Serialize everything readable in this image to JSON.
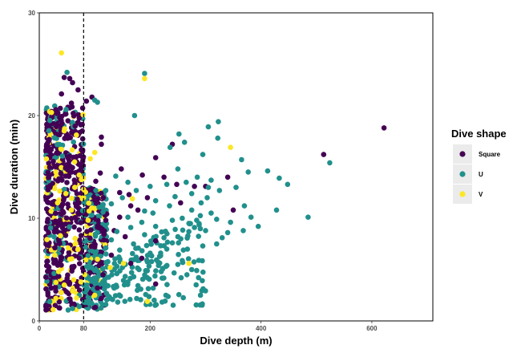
{
  "chart_data": {
    "type": "scatter",
    "xlabel": "Dive depth (m)",
    "ylabel": "Dive duration (min)",
    "xlim": [
      0,
      710
    ],
    "ylim": [
      0,
      30
    ],
    "xticks": [
      0,
      80,
      200,
      400,
      600
    ],
    "yticks": [
      0,
      10,
      20,
      30
    ],
    "grid": false,
    "reference_line": {
      "x": 80,
      "style": "dashed"
    },
    "legend": {
      "title": "Dive shape",
      "position": "right"
    },
    "colors": {
      "Square": "#440154",
      "U": "#21908C",
      "V": "#FDE725"
    },
    "series": [
      {
        "name": "Square",
        "points": [
          [
            622,
            18.8
          ],
          [
            513,
            16.2
          ],
          [
            45,
            23.7
          ],
          [
            55,
            23.6
          ],
          [
            60,
            23.2
          ],
          [
            40,
            22.1
          ],
          [
            70,
            22.5
          ],
          [
            85,
            21.4
          ],
          [
            95,
            21.8
          ],
          [
            58,
            21.2
          ],
          [
            112,
            17.9
          ],
          [
            112,
            17.2
          ],
          [
            240,
            17.2
          ],
          [
            210,
            15.9
          ],
          [
            148,
            14.8
          ],
          [
            186,
            14.2
          ],
          [
            225,
            14.0
          ],
          [
            248,
            13.3
          ],
          [
            280,
            13.1
          ],
          [
            110,
            14.4
          ],
          [
            145,
            12.5
          ],
          [
            162,
            12.3
          ],
          [
            195,
            12.0
          ],
          [
            255,
            11.5
          ],
          [
            178,
            10.8
          ],
          [
            145,
            10.1
          ],
          [
            120,
            9.8
          ],
          [
            102,
            13.6
          ],
          [
            135,
            8.8
          ],
          [
            155,
            8.2
          ],
          [
            210,
            7.8
          ],
          [
            185,
            6.1
          ],
          [
            165,
            5.6
          ],
          [
            130,
            6.4
          ],
          [
            100,
            7.2
          ],
          [
            115,
            4.5
          ],
          [
            105,
            3.2
          ],
          [
            112,
            2.2
          ],
          [
            92,
            2.7
          ],
          [
            210,
            3.6
          ],
          [
            350,
            10.8
          ],
          [
            340,
            14.0
          ],
          [
            300,
            13.1
          ],
          [
            165,
            11.2
          ]
        ]
      },
      {
        "name": "U",
        "points": [
          [
            190,
            24.1
          ],
          [
            172,
            20.0
          ],
          [
            100,
            21.5
          ],
          [
            105,
            21.3
          ],
          [
            50,
            24.2
          ],
          [
            323,
            19.4
          ],
          [
            305,
            18.9
          ],
          [
            252,
            18.2
          ],
          [
            236,
            16.9
          ],
          [
            262,
            17.4
          ],
          [
            322,
            17.8
          ],
          [
            295,
            16.2
          ],
          [
            365,
            15.7
          ],
          [
            377,
            14.5
          ],
          [
            412,
            14.6
          ],
          [
            433,
            13.9
          ],
          [
            448,
            13.3
          ],
          [
            524,
            15.4
          ],
          [
            485,
            10.1
          ],
          [
            428,
            10.8
          ],
          [
            382,
            10.1
          ],
          [
            325,
            12.7
          ],
          [
            303,
            12.0
          ],
          [
            292,
            11.5
          ],
          [
            275,
            10.8
          ],
          [
            258,
            10.0
          ],
          [
            240,
            9.8
          ],
          [
            210,
            9.2
          ],
          [
            185,
            9.6
          ],
          [
            165,
            9.1
          ],
          [
            140,
            8.7
          ],
          [
            130,
            7.9
          ],
          [
            120,
            7.1
          ],
          [
            110,
            6.3
          ],
          [
            175,
            6.2
          ],
          [
            200,
            6.6
          ],
          [
            230,
            7.0
          ],
          [
            260,
            6.9
          ],
          [
            295,
            7.3
          ],
          [
            330,
            8.1
          ],
          [
            368,
            8.8
          ],
          [
            395,
            9.2
          ],
          [
            300,
            8.8
          ],
          [
            320,
            9.9
          ],
          [
            280,
            9.1
          ],
          [
            250,
            8.2
          ],
          [
            215,
            5.4
          ],
          [
            195,
            4.2
          ],
          [
            160,
            3.8
          ],
          [
            140,
            4.6
          ],
          [
            135,
            3.2
          ],
          [
            125,
            2.4
          ],
          [
            150,
            5.2
          ],
          [
            250,
            5.5
          ],
          [
            275,
            5.0
          ],
          [
            320,
            7.5
          ],
          [
            345,
            9.6
          ],
          [
            265,
            13.5
          ],
          [
            230,
            13.3
          ],
          [
            200,
            13.1
          ],
          [
            175,
            12.7
          ],
          [
            150,
            12.0
          ],
          [
            130,
            11.4
          ],
          [
            115,
            10.6
          ],
          [
            95,
            10.3
          ],
          [
            160,
            10.1
          ],
          [
            120,
            12.7
          ],
          [
            205,
            10.5
          ],
          [
            235,
            11.2
          ],
          [
            305,
            13.0
          ],
          [
            340,
            8.6
          ],
          [
            220,
            4.8
          ],
          [
            180,
            5.0
          ],
          [
            100,
            4.0
          ],
          [
            90,
            2.2
          ],
          [
            120,
            1.6
          ],
          [
            72,
            1.4
          ],
          [
            60,
            1.2
          ],
          [
            85,
            3.0
          ],
          [
            105,
            8.6
          ],
          [
            145,
            6.9
          ],
          [
            170,
            7.5
          ],
          [
            190,
            8.4
          ],
          [
            245,
            12.1
          ],
          [
            160,
            13.5
          ],
          [
            138,
            14.1
          ],
          [
            250,
            14.8
          ],
          [
            285,
            14.0
          ],
          [
            310,
            13.7
          ],
          [
            355,
            13.0
          ],
          [
            370,
            11.2
          ],
          [
            310,
            10.5
          ],
          [
            210,
            11.7
          ],
          [
            225,
            8.1
          ],
          [
            275,
            12.4
          ],
          [
            190,
            10.7
          ],
          [
            270,
            9.5
          ],
          [
            240,
            7.6
          ]
        ]
      },
      {
        "name": "V",
        "points": [
          [
            40,
            26.1
          ],
          [
            190,
            23.6
          ],
          [
            22,
            20.3
          ],
          [
            345,
            16.9
          ],
          [
            168,
            11.9
          ],
          [
            270,
            5.6
          ],
          [
            195,
            1.9
          ],
          [
            35,
            4.8
          ],
          [
            45,
            3.5
          ],
          [
            30,
            2.2
          ],
          [
            60,
            2.9
          ],
          [
            75,
            3.8
          ],
          [
            25,
            1.1
          ],
          [
            100,
            2.5
          ],
          [
            88,
            9.8
          ],
          [
            58,
            10.8
          ],
          [
            64,
            13.0
          ],
          [
            72,
            14.2
          ],
          [
            48,
            12.4
          ],
          [
            38,
            8.3
          ],
          [
            28,
            6.4
          ],
          [
            52,
            7.1
          ],
          [
            92,
            15.8
          ],
          [
            67,
            18.1
          ],
          [
            40,
            16.7
          ],
          [
            105,
            6.0
          ],
          [
            82,
            4.5
          ],
          [
            152,
            5.6
          ],
          [
            128,
            5.2
          ],
          [
            95,
            11.0
          ],
          [
            100,
            16.4
          ],
          [
            30,
            14.5
          ],
          [
            33,
            11.5
          ],
          [
            55,
            6.0
          ],
          [
            70,
            7.0
          ],
          [
            80,
            12.0
          ],
          [
            45,
            18.5
          ],
          [
            62,
            4.0
          ]
        ]
      }
    ]
  }
}
